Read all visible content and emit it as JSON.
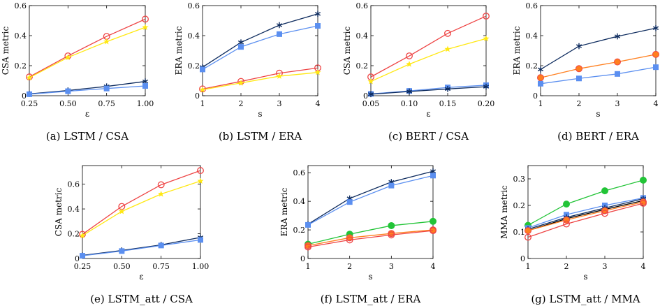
{
  "colors": {
    "red": "#ee4444",
    "yellow": "#ffe812",
    "navy": "#0d2b5e",
    "blue": "#5b8ff0",
    "green": "#22c437",
    "orange": "#ff7f1f",
    "black": "#000000"
  },
  "chart_data": [
    {
      "type": "line",
      "caption": "(a) LSTM / CSA",
      "xlabel": "ε",
      "ylabel": "CSA metric",
      "x": [
        0.25,
        0.5,
        0.75,
        1.0
      ],
      "xticks": [
        "0.25",
        "0.50",
        "0.75",
        "1.00"
      ],
      "ylim": [
        0,
        0.6
      ],
      "yticks": [
        "0",
        "0.2",
        "0.4",
        "0.6"
      ],
      "series": [
        {
          "values": [
            0.125,
            0.265,
            0.395,
            0.51
          ],
          "color": "red",
          "marker": "circle-open"
        },
        {
          "values": [
            0.12,
            0.255,
            0.36,
            0.455
          ],
          "color": "yellow",
          "marker": "star"
        },
        {
          "values": [
            0.012,
            0.035,
            0.062,
            0.095
          ],
          "color": "navy",
          "marker": "asterisk"
        },
        {
          "values": [
            0.01,
            0.03,
            0.048,
            0.065
          ],
          "color": "blue",
          "marker": "square"
        }
      ]
    },
    {
      "type": "line",
      "caption": "(b) LSTM / ERA",
      "xlabel": "s",
      "ylabel": "ERA metric",
      "x": [
        1,
        2,
        3,
        4
      ],
      "xticks": [
        "1",
        "2",
        "3",
        "4"
      ],
      "ylim": [
        0,
        0.6
      ],
      "yticks": [
        "0",
        "0.2",
        "0.4",
        "0.6"
      ],
      "series": [
        {
          "values": [
            0.19,
            0.355,
            0.47,
            0.545
          ],
          "color": "navy",
          "marker": "asterisk"
        },
        {
          "values": [
            0.175,
            0.325,
            0.41,
            0.465
          ],
          "color": "blue",
          "marker": "square"
        },
        {
          "values": [
            0.045,
            0.095,
            0.15,
            0.185
          ],
          "color": "red",
          "marker": "circle-open"
        },
        {
          "values": [
            0.04,
            0.085,
            0.13,
            0.155
          ],
          "color": "yellow",
          "marker": "star"
        }
      ]
    },
    {
      "type": "line",
      "caption": "(c) BERT / CSA",
      "xlabel": "ε",
      "ylabel": "CSA metric",
      "x": [
        0.05,
        0.1,
        0.15,
        0.2
      ],
      "xticks": [
        "0.05",
        "0.10",
        "0.15",
        "0.20"
      ],
      "ylim": [
        0,
        0.6
      ],
      "yticks": [
        "0",
        "0.2",
        "0.4",
        "0.6"
      ],
      "series": [
        {
          "values": [
            0.125,
            0.265,
            0.415,
            0.53
          ],
          "color": "red",
          "marker": "circle-open"
        },
        {
          "values": [
            0.095,
            0.21,
            0.31,
            0.38
          ],
          "color": "yellow",
          "marker": "star"
        },
        {
          "values": [
            0.012,
            0.032,
            0.055,
            0.07
          ],
          "color": "blue",
          "marker": "square"
        },
        {
          "values": [
            0.01,
            0.028,
            0.045,
            0.06
          ],
          "color": "navy",
          "marker": "asterisk"
        }
      ]
    },
    {
      "type": "line",
      "caption": "(d) BERT / ERA",
      "xlabel": "s",
      "ylabel": "ERA metric",
      "x": [
        1,
        2,
        3,
        4
      ],
      "xticks": [
        "1",
        "2",
        "3",
        "4"
      ],
      "ylim": [
        0,
        0.6
      ],
      "yticks": [
        "0",
        "0.2",
        "0.4",
        "0.6"
      ],
      "series": [
        {
          "values": [
            0.175,
            0.33,
            0.395,
            0.45
          ],
          "color": "navy",
          "marker": "asterisk"
        },
        {
          "values": [
            0.12,
            0.18,
            0.225,
            0.275
          ],
          "color": "orange",
          "marker": "circle-filled-red-edge"
        },
        {
          "values": [
            0.08,
            0.115,
            0.145,
            0.19
          ],
          "color": "blue",
          "marker": "square"
        }
      ]
    },
    {
      "type": "line",
      "caption": "(e) LSTM_att / CSA",
      "xlabel": "ε",
      "ylabel": "CSA metric",
      "x": [
        0.25,
        0.5,
        0.75,
        1.0
      ],
      "xticks": [
        "0.25",
        "0.50",
        "0.75",
        "1.00"
      ],
      "ylim": [
        0,
        0.75
      ],
      "yticks": [
        "0",
        "0.2",
        "0.4",
        "0.6"
      ],
      "series": [
        {
          "values": [
            0.195,
            0.42,
            0.595,
            0.71
          ],
          "color": "red",
          "marker": "circle-open"
        },
        {
          "values": [
            0.185,
            0.38,
            0.52,
            0.625
          ],
          "color": "yellow",
          "marker": "star"
        },
        {
          "values": [
            0.025,
            0.065,
            0.11,
            0.17
          ],
          "color": "navy",
          "marker": "asterisk"
        },
        {
          "values": [
            0.022,
            0.06,
            0.105,
            0.15
          ],
          "color": "blue",
          "marker": "square"
        }
      ]
    },
    {
      "type": "line",
      "caption": "(f) LSTM_att / ERA",
      "xlabel": "s",
      "ylabel": "ERA metric",
      "x": [
        1,
        2,
        3,
        4
      ],
      "xticks": [
        "1",
        "2",
        "3",
        "4"
      ],
      "ylim": [
        0,
        0.65
      ],
      "yticks": [
        "0",
        "0.2",
        "0.4",
        "0.6"
      ],
      "series": [
        {
          "values": [
            0.24,
            0.42,
            0.535,
            0.61
          ],
          "color": "navy",
          "marker": "asterisk"
        },
        {
          "values": [
            0.235,
            0.395,
            0.51,
            0.58
          ],
          "color": "blue",
          "marker": "square"
        },
        {
          "values": [
            0.1,
            0.17,
            0.23,
            0.26
          ],
          "color": "green",
          "marker": "circle-filled"
        },
        {
          "values": [
            0.09,
            0.145,
            0.175,
            0.2
          ],
          "color": "orange",
          "marker": "circle-filled-red-edge"
        },
        {
          "values": [
            0.08,
            0.13,
            0.165,
            0.195
          ],
          "color": "red",
          "marker": "circle-open"
        }
      ]
    },
    {
      "type": "line",
      "caption": "(g) LSTM_att / MMA",
      "xlabel": "s",
      "ylabel": "MMA metric",
      "x": [
        1,
        2,
        3,
        4
      ],
      "xticks": [
        "1",
        "2",
        "3",
        "4"
      ],
      "ylim": [
        0,
        0.35
      ],
      "yticks": [
        "0",
        "0.1",
        "0.2",
        "0.3"
      ],
      "series": [
        {
          "values": [
            0.125,
            0.205,
            0.255,
            0.295
          ],
          "color": "green",
          "marker": "circle-filled"
        },
        {
          "values": [
            0.115,
            0.165,
            0.2,
            0.228
          ],
          "color": "blue",
          "marker": "square"
        },
        {
          "values": [
            0.11,
            0.155,
            0.19,
            0.225
          ],
          "color": "navy",
          "marker": "asterisk"
        },
        {
          "values": [
            0.105,
            0.15,
            0.185,
            0.218
          ],
          "color": "black",
          "marker": "none"
        },
        {
          "values": [
            0.105,
            0.145,
            0.18,
            0.213
          ],
          "color": "orange",
          "marker": "circle-filled-red-edge"
        },
        {
          "values": [
            0.08,
            0.13,
            0.17,
            0.208
          ],
          "color": "red",
          "marker": "circle-open"
        }
      ]
    }
  ]
}
